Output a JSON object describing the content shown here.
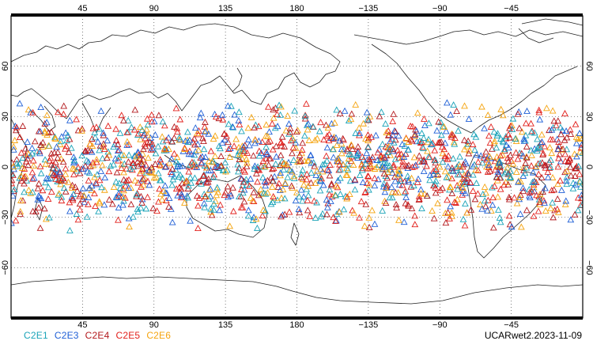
{
  "map": {
    "projection": "cylindrical equidistant",
    "center_longitude": 180,
    "lat_range": [
      -90,
      90
    ],
    "grid": "dotted",
    "coastlines": "continent outlines",
    "lon_ticks": [
      {
        "lon": 45,
        "label": "45"
      },
      {
        "lon": 90,
        "label": "90"
      },
      {
        "lon": 135,
        "label": "135"
      },
      {
        "lon": 180,
        "label": "180"
      },
      {
        "lon": 225,
        "label": "−135"
      },
      {
        "lon": 270,
        "label": "−90"
      },
      {
        "lon": 315,
        "label": "−45"
      }
    ],
    "lat_ticks": [
      {
        "lat": 60,
        "label": "60"
      },
      {
        "lat": 30,
        "label": "30"
      },
      {
        "lat": 0,
        "label": "0"
      },
      {
        "lat": -30,
        "label": "−30"
      },
      {
        "lat": -60,
        "label": "−60"
      }
    ],
    "marker": "open triangle",
    "observations": {
      "approx_lat_extent": [
        -40,
        40
      ],
      "shown_as": "dense scatter of occultation locations"
    }
  },
  "legend": [
    {
      "label": "C2E1",
      "color": "#1aa3b8"
    },
    {
      "label": "C2E3",
      "color": "#1f5fd6"
    },
    {
      "label": "C2E4",
      "color": "#b3191d"
    },
    {
      "label": "C2E5",
      "color": "#e2201c"
    },
    {
      "label": "C2E6",
      "color": "#f5a40f"
    }
  ],
  "dataset_label": "UCARwet2.2023-11-09"
}
